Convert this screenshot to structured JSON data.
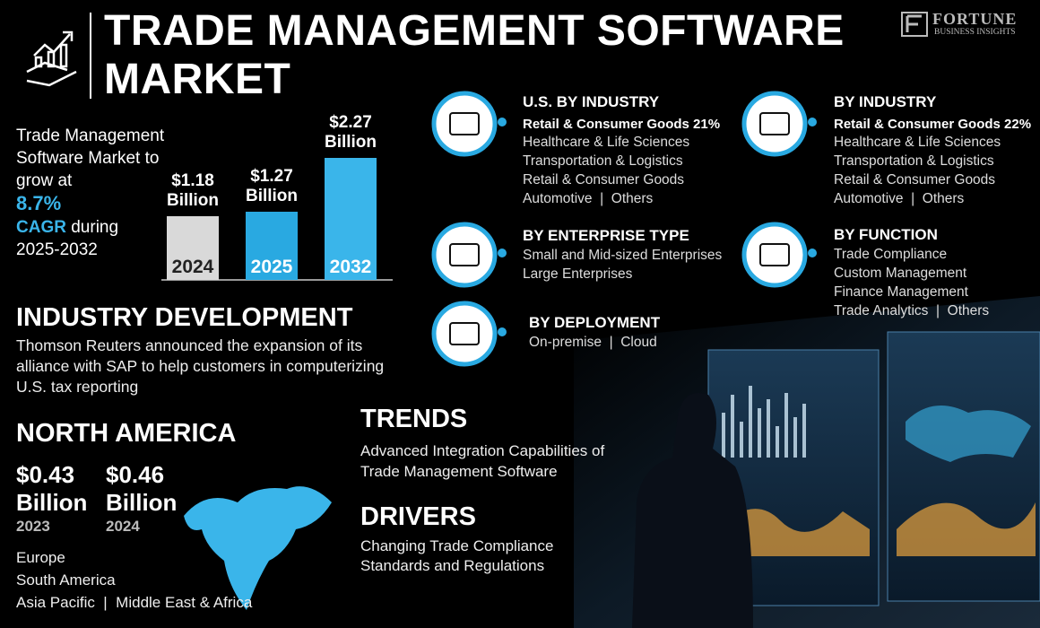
{
  "header": {
    "title": "TRADE MANAGEMENT SOFTWARE MARKET",
    "logo": "FORTUNE",
    "logo_sub": "BUSINESS INSIGHTS"
  },
  "summary": {
    "text": "Trade Management Software Market to grow at",
    "cagr": "8.7%",
    "cagr_label": "CAGR",
    "during": "during",
    "period": "2025-2032"
  },
  "chart_data": {
    "type": "bar",
    "categories": [
      "2024",
      "2025",
      "2032"
    ],
    "values": [
      1.18,
      1.27,
      2.27
    ],
    "value_labels": [
      "$1.18 Billion",
      "$1.27 Billion",
      "$2.27 Billion"
    ],
    "colors": [
      "#d9d9d9",
      "#29a9e1",
      "#3ab5ea"
    ]
  },
  "segments": [
    {
      "title": "U.S. BY INDUSTRY",
      "highlight": "Retail & Consumer Goods 21%",
      "items": [
        "Healthcare & Life Sciences",
        "Transportation & Logistics",
        "Retail & Consumer Goods",
        "Automotive  |  Others"
      ]
    },
    {
      "title": "BY INDUSTRY",
      "highlight": "Retail & Consumer Goods 22%",
      "items": [
        "Healthcare & Life Sciences",
        "Transportation & Logistics",
        "Retail & Consumer Goods",
        "Automotive  |  Others"
      ]
    },
    {
      "title": "BY ENTERPRISE TYPE",
      "items": [
        "Small and Mid-sized Enterprises",
        "Large Enterprises"
      ]
    },
    {
      "title": "BY FUNCTION",
      "items": [
        "Trade Compliance",
        "Custom Management",
        "Finance Management",
        "Trade Analytics  |  Others"
      ]
    },
    {
      "title": "BY DEPLOYMENT",
      "items": [
        "On-premise  |  Cloud"
      ]
    }
  ],
  "industry_development": {
    "title": "INDUSTRY DEVELOPMENT",
    "text": "Thomson Reuters announced the expansion of its alliance with SAP to help customers in computerizing U.S. tax reporting"
  },
  "north_america": {
    "title": "NORTH AMERICA",
    "stats": [
      {
        "value": "$0.43 Billion",
        "year": "2023"
      },
      {
        "value": "$0.46 Billion",
        "year": "2024"
      }
    ],
    "regions": [
      "Europe",
      "South America",
      "Asia Pacific  |  Middle East & Africa"
    ]
  },
  "trends": {
    "title": "TRENDS",
    "text": "Advanced Integration Capabilities of Trade Management Software"
  },
  "drivers": {
    "title": "DRIVERS",
    "text": "Changing Trade Compliance Standards and Regulations"
  }
}
